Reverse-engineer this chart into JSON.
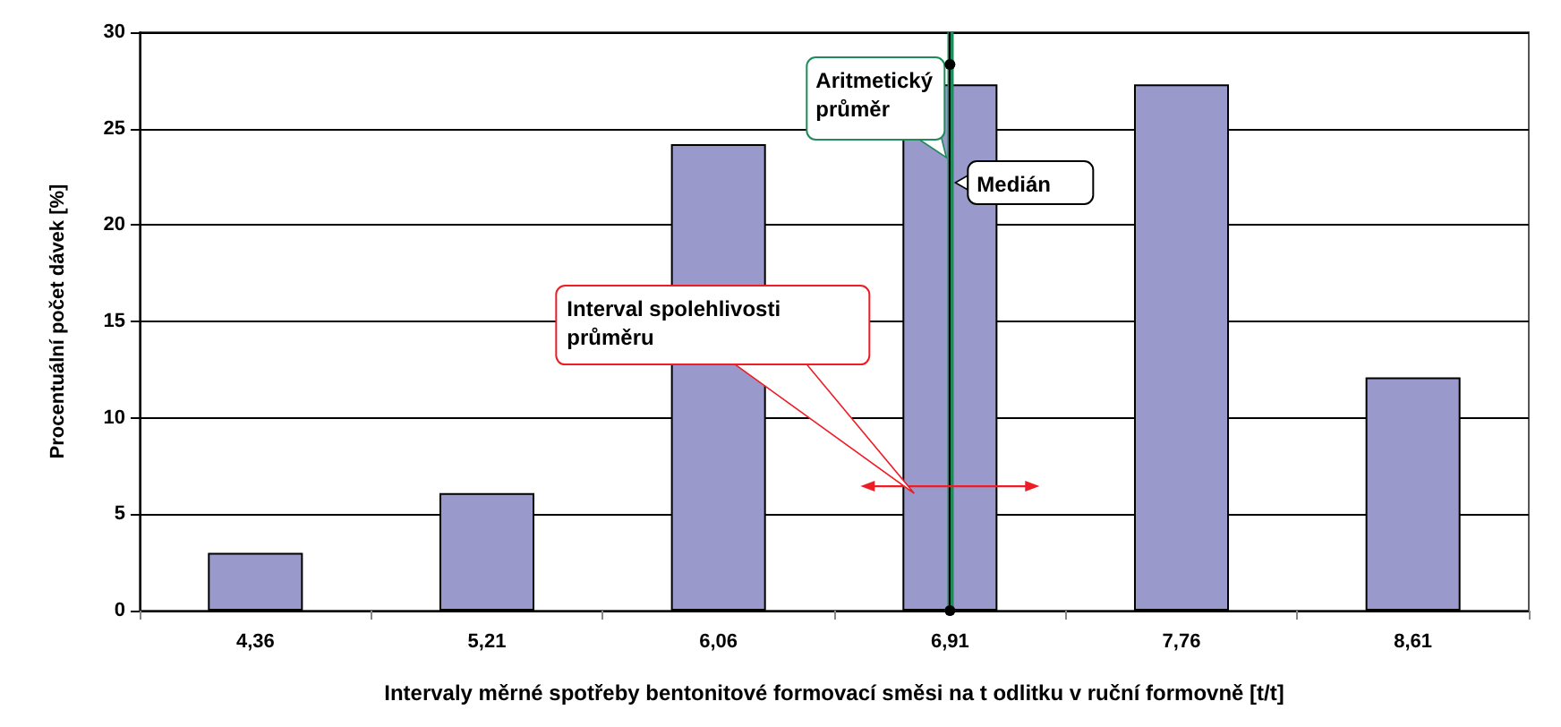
{
  "chart_data": {
    "type": "bar",
    "xlabel": "Intervaly měrné spotřeby bentonitové formovací směsi na t odlitku v ruční formovně [t/t]",
    "ylabel": "Procentuální počet dávek [%]",
    "categories": [
      "4,36",
      "5,21",
      "6,06",
      "6,91",
      "7,76",
      "8,61"
    ],
    "values": [
      3,
      6.1,
      24.2,
      27.3,
      27.3,
      12.1
    ],
    "color": "#9999cc",
    "ylim": [
      0,
      30
    ],
    "yticks": [
      0,
      5,
      10,
      15,
      20,
      25,
      30
    ],
    "grid": "y",
    "ref_lines": [
      {
        "axis": "x",
        "value": "6,91",
        "label": "Aritmetický průměr",
        "color": "#1f8a5a"
      },
      {
        "axis": "x",
        "value": "6,91",
        "label": "Medián",
        "color": "#000000"
      }
    ],
    "annotations": [
      "Interval spolehlivosti průměru"
    ]
  }
}
